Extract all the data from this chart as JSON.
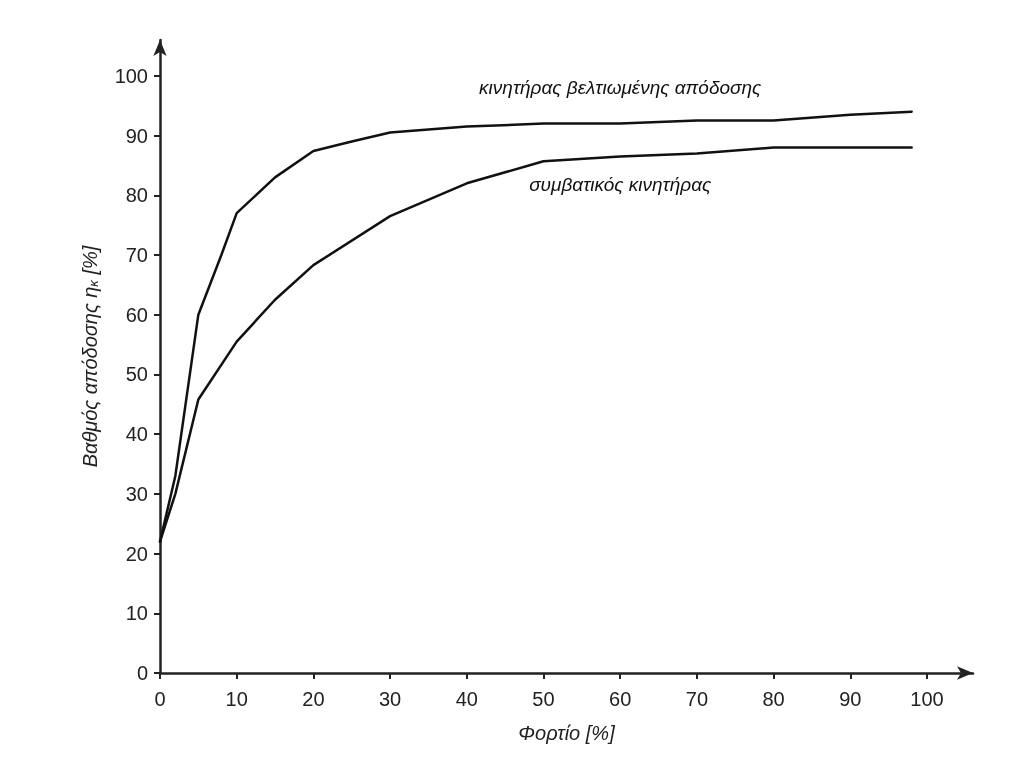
{
  "chart_data": {
    "type": "line",
    "xlabel": "Φορτίο [%]",
    "ylabel": "Βαθμός απόδοσης η$_{κ}$ [%]",
    "xlim": [
      0,
      106
    ],
    "ylim": [
      0,
      106
    ],
    "xticks": [
      0,
      10,
      20,
      30,
      40,
      50,
      60,
      70,
      80,
      90,
      100
    ],
    "yticks": [
      0,
      10,
      20,
      30,
      40,
      50,
      60,
      70,
      80,
      90,
      100
    ],
    "grid": false,
    "legend": false,
    "marker": "none",
    "line_style": "solid",
    "series": [
      {
        "name": "κινητήρας βελτιωμένης απόδοσης",
        "color": "#111111",
        "x": [
          0,
          2,
          5,
          8,
          10,
          15,
          20,
          25,
          30,
          40,
          50,
          60,
          70,
          80,
          90,
          98
        ],
        "values": [
          22,
          33,
          60,
          70,
          77,
          83,
          87.4,
          89,
          90.5,
          91.5,
          92,
          92,
          92.5,
          92.5,
          93.5,
          94
        ]
      },
      {
        "name": "συμβατικός κινητήρας",
        "color": "#111111",
        "x": [
          0,
          2,
          5,
          10,
          15,
          20,
          30,
          40,
          50,
          60,
          70,
          80,
          90,
          98
        ],
        "values": [
          22,
          30,
          45.8,
          55.5,
          62.5,
          68.3,
          76.5,
          82,
          85.7,
          86.5,
          87,
          88,
          88,
          88
        ]
      }
    ]
  }
}
